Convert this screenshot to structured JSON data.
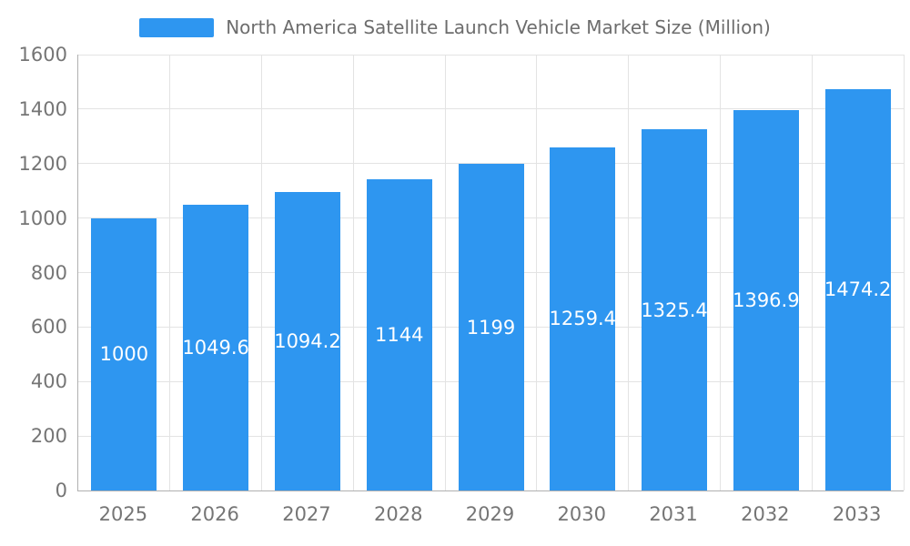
{
  "chart_data": {
    "type": "bar",
    "title": "North America Satellite Launch Vehicle Market Size (Million)",
    "legend": {
      "position": "top",
      "entries": [
        "North America Satellite Launch Vehicle Market Size (Million)"
      ]
    },
    "categories": [
      "2025",
      "2026",
      "2027",
      "2028",
      "2029",
      "2030",
      "2031",
      "2032",
      "2033"
    ],
    "values": [
      1000,
      1049.6,
      1094.2,
      1144,
      1199,
      1259.4,
      1325.4,
      1396.9,
      1474.2
    ],
    "value_labels": [
      "1000",
      "1049.6",
      "1094.2",
      "1144",
      "1199",
      "1259.4",
      "1325.4",
      "1396.9",
      "1474.2"
    ],
    "xlabel": "",
    "ylabel": "",
    "ylim": [
      0,
      1600
    ],
    "yticks": [
      0,
      200,
      400,
      600,
      800,
      1000,
      1200,
      1400,
      1600
    ],
    "grid": true,
    "colors": {
      "bar": "#2E96F0",
      "value_label": "#ffffff",
      "title_text": "#6d6d6d",
      "axis_text": "#757575",
      "gridline": "#e3e3e3",
      "axis_line": "#b0b0b0",
      "background": "#ffffff"
    }
  }
}
